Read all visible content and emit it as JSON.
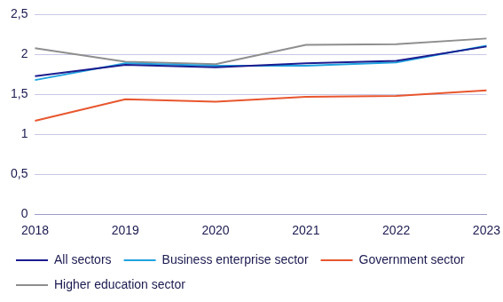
{
  "chart_data": {
    "type": "line",
    "categories": [
      "2018",
      "2019",
      "2020",
      "2021",
      "2022",
      "2023"
    ],
    "series": [
      {
        "name": "All sectors",
        "color": "#1c1c8f",
        "values": [
          1.73,
          1.87,
          1.84,
          1.89,
          1.92,
          2.1
        ]
      },
      {
        "name": "Business enterprise sector",
        "color": "#1fa3df",
        "values": [
          1.68,
          1.89,
          1.86,
          1.86,
          1.9,
          2.11
        ]
      },
      {
        "name": "Government sector",
        "color": "#e8562e",
        "values": [
          1.17,
          1.44,
          1.41,
          1.47,
          1.48,
          1.55
        ]
      },
      {
        "name": "Higher education sector",
        "color": "#8e8e8e",
        "values": [
          2.08,
          1.91,
          1.88,
          2.12,
          2.13,
          2.2
        ]
      }
    ],
    "ylim": [
      0,
      2.5
    ],
    "yticks": [
      0,
      {
        "value": 0.5,
        "label": "0,5"
      },
      1,
      {
        "value": 1.5,
        "label": "1,5"
      },
      2,
      {
        "value": 2.5,
        "label": "2,5"
      }
    ],
    "grid": true,
    "legend": "bottom"
  }
}
